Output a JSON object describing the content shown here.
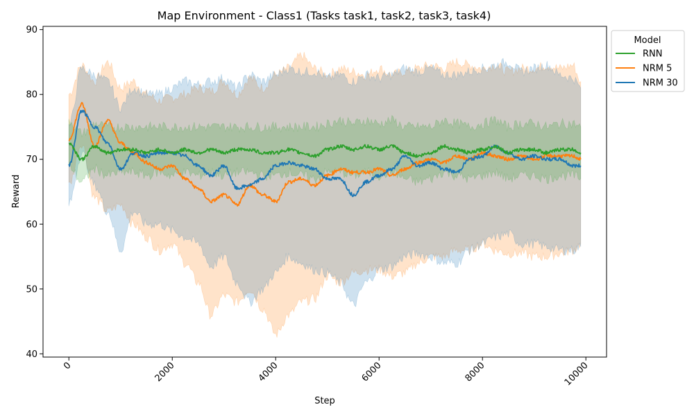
{
  "chart_data": {
    "type": "line",
    "title": "Map Environment - Class1 (Tasks task1, task2, task3, task4)",
    "xlabel": "Step",
    "ylabel": "Reward",
    "xlim": [
      -500,
      10400
    ],
    "ylim": [
      39.5,
      90.5
    ],
    "xticks": [
      0,
      2000,
      4000,
      6000,
      8000,
      10000
    ],
    "xtick_labels": [
      "0",
      "2000",
      "4000",
      "6000",
      "8000",
      "10000"
    ],
    "yticks": [
      40,
      50,
      60,
      70,
      80,
      90
    ],
    "ytick_labels": [
      "40",
      "50",
      "60",
      "70",
      "80",
      "90"
    ],
    "grid": false,
    "legend": {
      "title": "Model",
      "placement": "outside-top-right"
    },
    "x": [
      0,
      250,
      500,
      750,
      1000,
      1250,
      1500,
      1750,
      2000,
      2250,
      2500,
      2750,
      3000,
      3250,
      3500,
      3750,
      4000,
      4250,
      4500,
      4750,
      5000,
      5250,
      5500,
      5750,
      6000,
      6250,
      6500,
      6750,
      7000,
      7250,
      7500,
      7750,
      8000,
      8250,
      8500,
      8750,
      9000,
      9250,
      9500,
      9750,
      9900
    ],
    "series": [
      {
        "name": "RNN",
        "color": "#2ca02c",
        "values": [
          72.5,
          70.0,
          72.0,
          71.0,
          71.5,
          71.5,
          71.0,
          71.5,
          71.0,
          71.5,
          71.0,
          71.5,
          71.0,
          71.5,
          71.5,
          71.0,
          71.0,
          71.5,
          71.0,
          70.5,
          71.5,
          72.0,
          71.5,
          72.0,
          71.5,
          72.0,
          71.0,
          70.5,
          71.0,
          72.0,
          71.5,
          71.0,
          71.5,
          72.0,
          71.0,
          71.5,
          71.5,
          71.0,
          71.5,
          71.5,
          71.0
        ],
        "upper": [
          76.0,
          74.0,
          75.5,
          75.0,
          75.0,
          75.0,
          75.0,
          75.0,
          75.0,
          75.0,
          75.0,
          75.0,
          75.0,
          75.0,
          75.0,
          75.0,
          75.0,
          75.0,
          75.0,
          75.0,
          75.5,
          76.0,
          75.5,
          76.0,
          75.5,
          76.0,
          75.0,
          75.0,
          75.0,
          76.0,
          75.5,
          75.0,
          75.5,
          76.0,
          75.0,
          75.5,
          75.5,
          75.0,
          75.5,
          75.5,
          75.0
        ],
        "lower": [
          69.0,
          66.5,
          68.5,
          67.5,
          68.0,
          68.0,
          67.5,
          68.0,
          67.5,
          68.0,
          67.5,
          68.0,
          67.5,
          68.0,
          68.0,
          67.5,
          67.5,
          68.0,
          67.5,
          67.0,
          68.0,
          68.0,
          67.5,
          68.0,
          67.5,
          68.0,
          67.0,
          66.5,
          67.0,
          68.0,
          67.5,
          67.0,
          67.5,
          68.0,
          67.0,
          67.5,
          67.5,
          67.0,
          67.5,
          67.5,
          67.0
        ]
      },
      {
        "name": "NRM 5",
        "color": "#ff7f0e",
        "values": [
          73.0,
          78.5,
          72.0,
          76.0,
          72.5,
          71.0,
          69.5,
          68.5,
          69.0,
          67.0,
          65.5,
          63.5,
          64.5,
          63.0,
          66.0,
          64.5,
          63.5,
          66.5,
          67.0,
          66.0,
          67.5,
          68.5,
          68.0,
          68.0,
          68.5,
          67.5,
          68.5,
          69.5,
          70.0,
          69.5,
          70.5,
          70.0,
          71.0,
          70.5,
          70.0,
          70.5,
          70.0,
          70.5,
          70.5,
          70.5,
          70.0
        ],
        "upper": [
          80.0,
          84.5,
          82.0,
          85.0,
          81.0,
          82.0,
          80.0,
          79.0,
          79.5,
          80.0,
          81.0,
          80.5,
          82.0,
          80.0,
          82.5,
          81.0,
          83.0,
          84.0,
          86.0,
          84.0,
          83.0,
          84.0,
          83.5,
          83.0,
          84.0,
          83.0,
          83.5,
          84.0,
          84.5,
          84.0,
          85.0,
          84.5,
          84.0,
          84.5,
          83.5,
          84.0,
          84.0,
          84.5,
          84.0,
          84.5,
          82.0
        ],
        "lower": [
          66.0,
          72.5,
          64.0,
          62.0,
          63.0,
          60.0,
          58.0,
          56.0,
          57.0,
          54.0,
          51.0,
          46.0,
          49.0,
          48.0,
          50.0,
          47.0,
          43.0,
          46.0,
          48.0,
          48.5,
          52.0,
          51.0,
          52.5,
          53.0,
          53.0,
          52.0,
          52.5,
          54.0,
          55.0,
          55.0,
          56.0,
          56.0,
          57.0,
          56.0,
          55.5,
          55.5,
          55.0,
          55.0,
          55.5,
          56.0,
          57.0
        ]
      },
      {
        "name": "NRM 30",
        "color": "#1f77b4",
        "values": [
          69.0,
          77.5,
          75.0,
          72.5,
          68.5,
          71.0,
          70.5,
          71.0,
          71.0,
          70.5,
          69.0,
          67.5,
          69.0,
          65.5,
          66.0,
          67.0,
          69.0,
          69.5,
          69.0,
          68.5,
          67.0,
          67.0,
          64.5,
          66.5,
          67.5,
          68.5,
          70.5,
          69.0,
          69.5,
          68.5,
          68.0,
          70.0,
          70.5,
          72.0,
          71.0,
          70.0,
          70.5,
          70.0,
          70.0,
          69.0,
          69.0
        ],
        "upper": [
          75.0,
          84.0,
          83.0,
          82.0,
          78.0,
          81.0,
          80.0,
          80.0,
          81.0,
          82.0,
          81.5,
          82.0,
          82.5,
          81.0,
          83.0,
          82.0,
          83.0,
          84.0,
          83.5,
          83.5,
          82.5,
          83.0,
          82.0,
          83.0,
          82.5,
          83.0,
          84.0,
          83.5,
          84.0,
          83.0,
          83.0,
          83.5,
          84.0,
          84.5,
          85.0,
          83.5,
          84.0,
          84.5,
          83.0,
          82.5,
          81.0
        ],
        "lower": [
          63.0,
          71.0,
          66.0,
          62.0,
          56.0,
          62.0,
          60.0,
          60.0,
          59.0,
          58.0,
          57.0,
          53.5,
          55.0,
          51.0,
          48.0,
          50.0,
          52.5,
          55.0,
          54.0,
          53.0,
          52.5,
          51.0,
          47.5,
          51.0,
          53.0,
          53.5,
          55.0,
          55.5,
          55.0,
          54.0,
          54.0,
          56.0,
          57.0,
          58.0,
          58.5,
          57.0,
          57.0,
          56.5,
          56.0,
          56.0,
          56.5
        ]
      }
    ]
  }
}
